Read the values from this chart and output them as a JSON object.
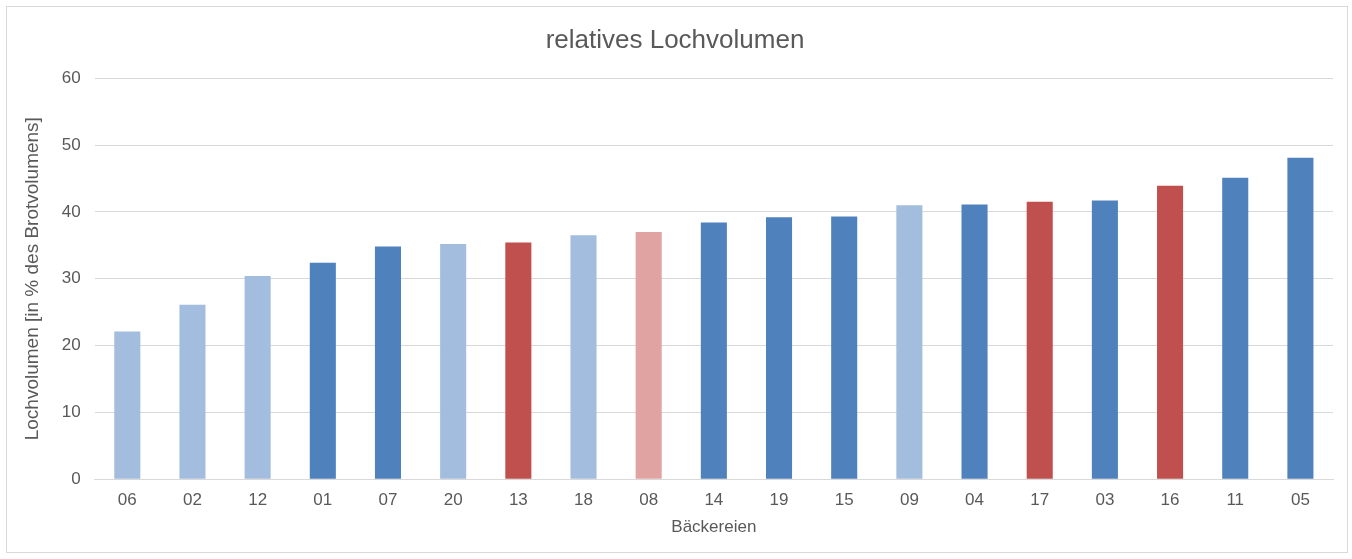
{
  "chart_data": {
    "type": "bar",
    "title": "relatives Lochvolumen",
    "xlabel": "Bäckereien",
    "ylabel": "Lochvolumen [in % des Brotvolumens]",
    "categories": [
      "06",
      "02",
      "12",
      "01",
      "07",
      "20",
      "13",
      "18",
      "08",
      "14",
      "19",
      "15",
      "09",
      "04",
      "17",
      "03",
      "16",
      "11",
      "05"
    ],
    "values": [
      22.1,
      26.1,
      30.4,
      32.4,
      34.8,
      35.2,
      35.4,
      36.5,
      37.0,
      38.4,
      39.2,
      39.3,
      41.0,
      41.1,
      41.5,
      41.7,
      43.9,
      45.1,
      48.1
    ],
    "colors": [
      "#a3bddf",
      "#a3bddf",
      "#a3bddf",
      "#4f81bd",
      "#4f81bd",
      "#a3bddf",
      "#c0504d",
      "#a3bddf",
      "#e0a3a1",
      "#4f81bd",
      "#4f81bd",
      "#4f81bd",
      "#a3bddf",
      "#4f81bd",
      "#c0504d",
      "#4f81bd",
      "#c0504d",
      "#4f81bd",
      "#4f81bd"
    ],
    "ylim": [
      0,
      60
    ],
    "yticks": [
      0,
      10,
      20,
      30,
      40,
      50,
      60
    ],
    "grid": "y"
  }
}
